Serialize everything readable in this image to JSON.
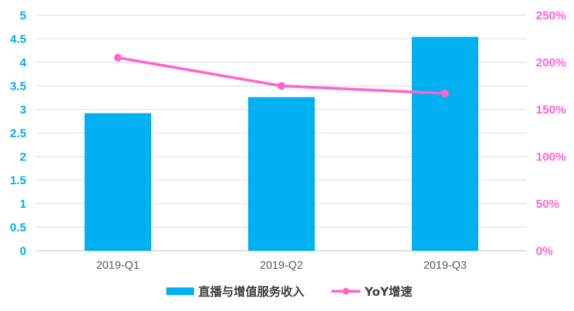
{
  "chart_data": {
    "type": "bar",
    "categories": [
      "2019-Q1",
      "2019-Q2",
      "2019-Q3"
    ],
    "series": [
      {
        "name": "直播与增值服务收入",
        "type": "bar",
        "axis": "left",
        "values": [
          2.92,
          3.26,
          4.54
        ],
        "color": "#00b0f0"
      },
      {
        "name": "YoY增速",
        "type": "line",
        "axis": "right",
        "values": [
          205,
          175,
          167
        ],
        "color": "#ff66cc"
      }
    ],
    "y_left": {
      "min": 0,
      "max": 5,
      "ticks": [
        "0",
        "0.5",
        "1",
        "1.5",
        "2",
        "2.5",
        "3",
        "3.5",
        "4",
        "4.5",
        "5"
      ],
      "tick_values": [
        0,
        0.5,
        1,
        1.5,
        2,
        2.5,
        3,
        3.5,
        4,
        4.5,
        5
      ],
      "color": "#00b0f0"
    },
    "y_right": {
      "min": 0,
      "max": 250,
      "ticks": [
        "0%",
        "50%",
        "100%",
        "150%",
        "200%",
        "250%"
      ],
      "tick_values": [
        0,
        50,
        100,
        150,
        200,
        250
      ],
      "unit": "%",
      "color": "#ff66cc"
    },
    "title": "",
    "grid": true,
    "legend_position": "bottom"
  }
}
